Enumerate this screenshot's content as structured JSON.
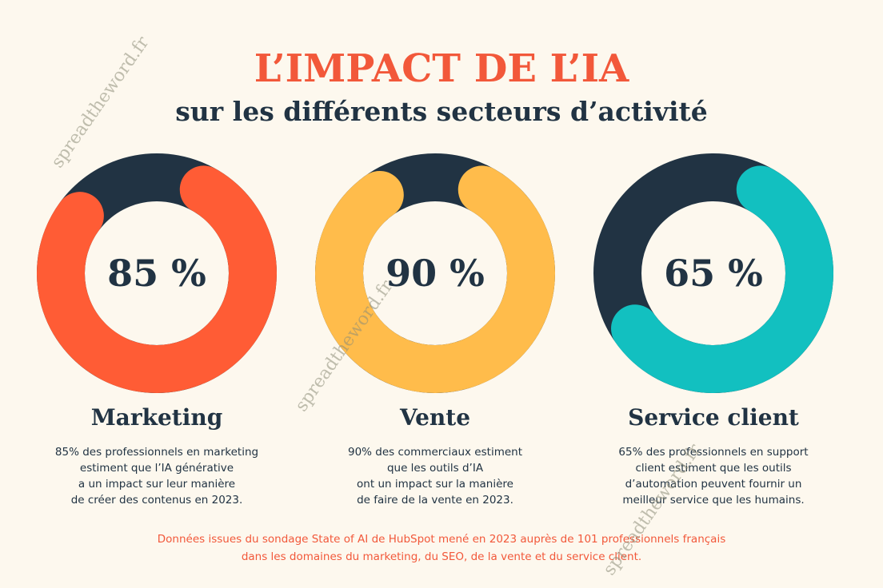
{
  "header": {
    "title": "L’IMPACT DE L’IA",
    "subtitle": "sur les différents secteurs d’activité"
  },
  "colors": {
    "background": "#fdf8ee",
    "track": "#213343",
    "marketing": "#ff5c35",
    "vente": "#ffbc4b",
    "service": "#12c0c0",
    "accent": "#f2583a"
  },
  "chart_data": [
    {
      "type": "pie",
      "variant": "donut",
      "label": "Marketing",
      "value": 85,
      "value_label": "85 %",
      "color": "#ff5c35",
      "description": [
        "85% des professionnels en marketing",
        "estiment que l’IA générative",
        "a un impact sur leur manière",
        "de créer des contenus en 2023."
      ]
    },
    {
      "type": "pie",
      "variant": "donut",
      "label": "Vente",
      "value": 90,
      "value_label": "90 %",
      "color": "#ffbc4b",
      "description": [
        "90% des commerciaux estiment",
        "que les outils d’IA",
        "ont un impact sur la manière",
        "de faire de la vente en 2023."
      ]
    },
    {
      "type": "pie",
      "variant": "donut",
      "label": "Service client",
      "value": 65,
      "value_label": "65 %",
      "color": "#12c0c0",
      "description": [
        "65% des professionnels en support",
        "client estiment que les outils",
        "d’automation peuvent fournir un",
        "meilleur service que les humains."
      ]
    }
  ],
  "footer": {
    "source_lines": [
      "Données issues du sondage State of AI de HubSpot mené en 2023 auprès de 101 professionnels français",
      "dans les domaines du marketing, du SEO, de la vente et du service client."
    ]
  },
  "watermark": "spreadtheword.fr"
}
